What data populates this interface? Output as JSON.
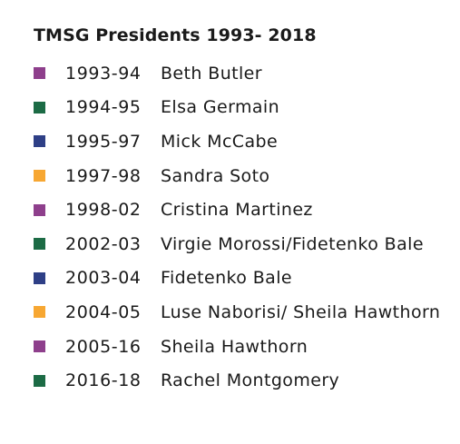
{
  "title": "TMSG Presidents 1993- 2018",
  "colors": {
    "purple": "#8e3f8c",
    "green": "#1c6b45",
    "navy": "#2e3f86",
    "orange": "#f7a732"
  },
  "presidents": [
    {
      "years": "1993-94",
      "name": "Beth Butler",
      "color": "purple"
    },
    {
      "years": "1994-95",
      "name": "Elsa Germain",
      "color": "green"
    },
    {
      "years": "1995-97",
      "name": "Mick McCabe",
      "color": "navy"
    },
    {
      "years": "1997-98",
      "name": "Sandra Soto",
      "color": "orange"
    },
    {
      "years": "1998-02",
      "name": "Cristina Martinez",
      "color": "purple"
    },
    {
      "years": "2002-03",
      "name": "Virgie Morossi/Fidetenko Bale",
      "color": "green"
    },
    {
      "years": "2003-04",
      "name": "Fidetenko Bale",
      "color": "navy"
    },
    {
      "years": "2004-05",
      "name": "Luse Naborisi/ Sheila Hawthorn",
      "color": "orange"
    },
    {
      "years": "2005-16",
      "name": "Sheila Hawthorn",
      "color": "purple"
    },
    {
      "years": "2016-18",
      "name": "Rachel Montgomery",
      "color": "green"
    }
  ]
}
